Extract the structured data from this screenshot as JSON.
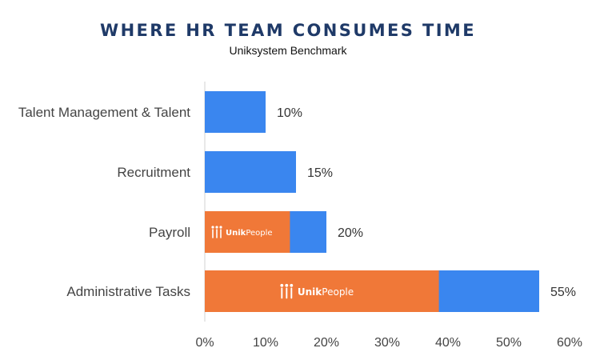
{
  "chart_data": {
    "type": "bar",
    "orientation": "horizontal",
    "title": "WHERE HR TEAM CONSUMES TIME",
    "subtitle": "Uniksystem Benchmark",
    "categories": [
      "Talent Management & Talent",
      "Recruitment",
      "Payroll",
      "Administrative Tasks"
    ],
    "values": [
      10,
      15,
      20,
      55
    ],
    "value_labels": [
      "10%",
      "15%",
      "20%",
      "55%"
    ],
    "highlight_values": [
      0,
      0,
      14,
      38.5
    ],
    "highlight_label": "UnikPeople",
    "xlim": [
      0,
      60
    ],
    "xticks": [
      "0%",
      "10%",
      "20%",
      "30%",
      "40%",
      "50%",
      "60%"
    ],
    "grid": false,
    "colors": {
      "bar": "#3a86ef",
      "highlight": "#f07838",
      "title": "#1f3a68"
    }
  }
}
